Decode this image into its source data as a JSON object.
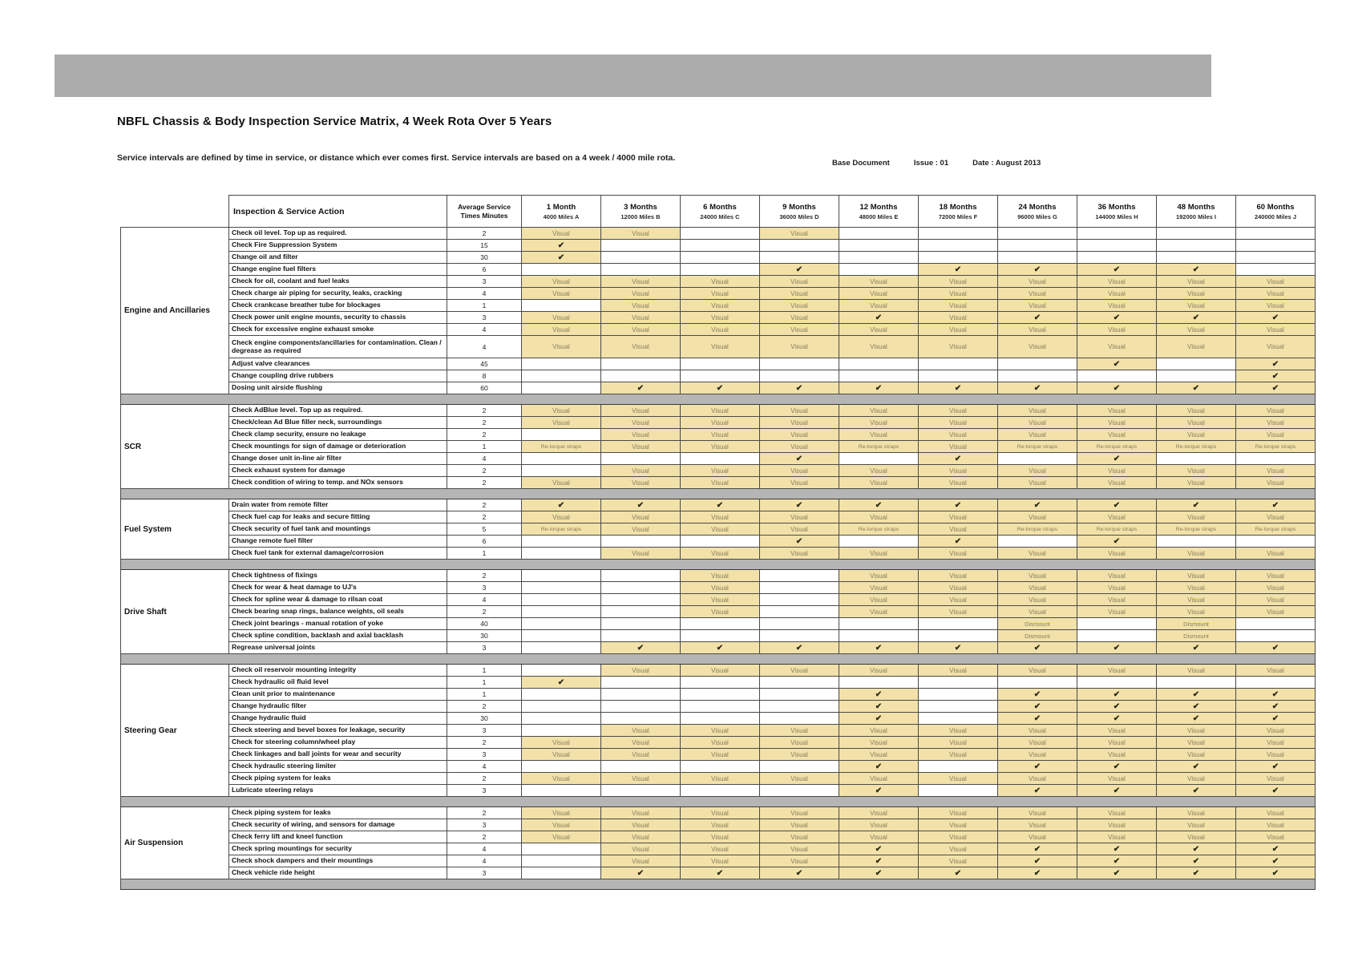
{
  "page": {
    "title": "NBFL Chassis & Body Inspection Service Matrix, 4 Week Rota Over 5 Years",
    "subtitle": "Service intervals are defined by time in service, or distance which ever comes first. Service intervals are based on a 4 week / 4000 mile rota.",
    "meta": {
      "base_document": "Base Document",
      "issue": "Issue : 01",
      "date": "Date : August 2013"
    }
  },
  "table": {
    "action_header": "Inspection & Service Action",
    "minutes_header_line1": "Average Service",
    "minutes_header_line2": "Times Minutes",
    "columns": [
      {
        "period": "1 Month",
        "miles": "4000 Miles A"
      },
      {
        "period": "3 Months",
        "miles": "12000 Miles B"
      },
      {
        "period": "6 Months",
        "miles": "24000 Miles C"
      },
      {
        "period": "9 Months",
        "miles": "36000 Miles D"
      },
      {
        "period": "12 Months",
        "miles": "48000 Miles E"
      },
      {
        "period": "18 Months",
        "miles": "72000 Miles F"
      },
      {
        "period": "24 Months",
        "miles": "96000 Miles G"
      },
      {
        "period": "36 Months",
        "miles": "144000 Miles H"
      },
      {
        "period": "48 Months",
        "miles": "192000 Miles I"
      },
      {
        "period": "60 Months",
        "miles": "240000 Miles J"
      }
    ],
    "cell_legend": {
      "V": "Visual",
      "C": "✔",
      "R": "Re-torque straps",
      "D": "Dismount",
      "": ""
    },
    "sections": [
      {
        "name": "Engine and Ancillaries",
        "rows": [
          {
            "action": "Check oil level. Top up as required.",
            "minutes": "2",
            "cells": [
              "V",
              "V",
              "",
              "V",
              "",
              "",
              "",
              "",
              "",
              ""
            ]
          },
          {
            "action": "Check Fire Suppression System",
            "minutes": "15",
            "cells": [
              "C",
              "",
              "",
              "",
              "",
              "",
              "",
              "",
              "",
              ""
            ]
          },
          {
            "action": "Change oil and filter",
            "minutes": "30",
            "cells": [
              "C",
              "",
              "",
              "",
              "",
              "",
              "",
              "",
              "",
              ""
            ]
          },
          {
            "action": "Change engine fuel filters",
            "minutes": "6",
            "cells": [
              "",
              "",
              "",
              "C",
              "",
              "C",
              "C",
              "C",
              "C",
              ""
            ]
          },
          {
            "action": "Check for oil, coolant and fuel leaks",
            "minutes": "3",
            "cells": [
              "V",
              "V",
              "V",
              "V",
              "V",
              "V",
              "V",
              "V",
              "V",
              "V"
            ]
          },
          {
            "action": "Check charge air piping for security, leaks, cracking",
            "minutes": "4",
            "cells": [
              "V",
              "V",
              "V",
              "V",
              "V",
              "V",
              "V",
              "V",
              "V",
              "V"
            ]
          },
          {
            "action": "Check crankcase breather tube for blockages",
            "minutes": "1",
            "cells": [
              "",
              "V",
              "V",
              "V",
              "V",
              "V",
              "V",
              "V",
              "V",
              "V"
            ]
          },
          {
            "action": "Check power unit engine mounts, security to chassis",
            "minutes": "3",
            "cells": [
              "V",
              "V",
              "V",
              "V",
              "C",
              "V",
              "C",
              "C",
              "C",
              "C"
            ]
          },
          {
            "action": "Check for excessive engine exhaust smoke",
            "minutes": "4",
            "cells": [
              "V",
              "V",
              "V",
              "V",
              "V",
              "V",
              "V",
              "V",
              "V",
              "V"
            ]
          },
          {
            "action": "Check engine components/ancillaries for contamination. Clean / degrease as required",
            "minutes": "4",
            "tall": true,
            "cells": [
              "V",
              "V",
              "V",
              "V",
              "V",
              "V",
              "V",
              "V",
              "V",
              "V"
            ]
          },
          {
            "action": "Adjust valve clearances",
            "minutes": "45",
            "cells": [
              "",
              "",
              "",
              "",
              "",
              "",
              "",
              "C",
              "",
              "C"
            ]
          },
          {
            "action": "Change coupling drive rubbers",
            "minutes": "8",
            "cells": [
              "",
              "",
              "",
              "",
              "",
              "",
              "",
              "",
              "",
              "C"
            ]
          },
          {
            "action": "Dosing unit airside flushing",
            "minutes": "60",
            "cells": [
              "",
              "C",
              "C",
              "C",
              "C",
              "C",
              "C",
              "C",
              "C",
              "C"
            ]
          }
        ]
      },
      {
        "name": "SCR",
        "rows": [
          {
            "action": "Check AdBlue level. Top up as required.",
            "minutes": "2",
            "cells": [
              "V",
              "V",
              "V",
              "V",
              "V",
              "V",
              "V",
              "V",
              "V",
              "V"
            ]
          },
          {
            "action": "Check/clean Ad Blue filler neck, surroundings",
            "minutes": "2",
            "cells": [
              "V",
              "V",
              "V",
              "V",
              "V",
              "V",
              "V",
              "V",
              "V",
              "V"
            ]
          },
          {
            "action": "Check clamp security, ensure no leakage",
            "minutes": "2",
            "cells": [
              "",
              "V",
              "V",
              "V",
              "V",
              "V",
              "V",
              "V",
              "V",
              "V"
            ]
          },
          {
            "action": "Check mountings for sign of damage or deterioration",
            "minutes": "1",
            "cells": [
              "R",
              "V",
              "V",
              "V",
              "R",
              "V",
              "R",
              "R",
              "R",
              "R"
            ]
          },
          {
            "action": "Change doser unit in-line air filter",
            "minutes": "4",
            "cells": [
              "",
              "",
              "",
              "C",
              "",
              "C",
              "",
              "C",
              "",
              ""
            ]
          },
          {
            "action": "Check exhaust system for damage",
            "minutes": "2",
            "cells": [
              "",
              "V",
              "V",
              "V",
              "V",
              "V",
              "V",
              "V",
              "V",
              "V"
            ]
          },
          {
            "action": "Check condition of wiring to temp. and NOx sensors",
            "minutes": "2",
            "cells": [
              "V",
              "V",
              "V",
              "V",
              "V",
              "V",
              "V",
              "V",
              "V",
              "V"
            ]
          }
        ]
      },
      {
        "name": "Fuel System",
        "rows": [
          {
            "action": "Drain water from remote filter",
            "minutes": "2",
            "cells": [
              "C",
              "C",
              "C",
              "C",
              "C",
              "C",
              "C",
              "C",
              "C",
              "C"
            ]
          },
          {
            "action": "Check fuel cap for leaks and secure fitting",
            "minutes": "2",
            "cells": [
              "V",
              "V",
              "V",
              "V",
              "V",
              "V",
              "V",
              "V",
              "V",
              "V"
            ]
          },
          {
            "action": "Check security of fuel tank and mountings",
            "minutes": "5",
            "cells": [
              "R",
              "V",
              "V",
              "V",
              "R",
              "V",
              "R",
              "R",
              "R",
              "R"
            ]
          },
          {
            "action": "Change remote fuel filter",
            "minutes": "6",
            "cells": [
              "",
              "",
              "",
              "C",
              "",
              "C",
              "",
              "C",
              "",
              ""
            ]
          },
          {
            "action": "Check fuel tank for external damage/corrosion",
            "minutes": "1",
            "cells": [
              "",
              "V",
              "V",
              "V",
              "V",
              "V",
              "V",
              "V",
              "V",
              "V"
            ]
          }
        ]
      },
      {
        "name": "Drive Shaft",
        "rows": [
          {
            "action": "Check tightness of fixings",
            "minutes": "2",
            "cells": [
              "",
              "",
              "V",
              "",
              "V",
              "V",
              "V",
              "V",
              "V",
              "V"
            ]
          },
          {
            "action": "Check for wear & heat damage to UJ's",
            "minutes": "3",
            "cells": [
              "",
              "",
              "V",
              "",
              "V",
              "V",
              "V",
              "V",
              "V",
              "V"
            ]
          },
          {
            "action": "Check for spline wear & damage to rilsan coat",
            "minutes": "4",
            "cells": [
              "",
              "",
              "V",
              "",
              "V",
              "V",
              "V",
              "V",
              "V",
              "V"
            ]
          },
          {
            "action": "Check bearing snap rings, balance weights, oil seals",
            "minutes": "2",
            "cells": [
              "",
              "",
              "V",
              "",
              "V",
              "V",
              "V",
              "V",
              "V",
              "V"
            ]
          },
          {
            "action": "Check joint bearings - manual rotation of yoke",
            "minutes": "40",
            "cells": [
              "",
              "",
              "",
              "",
              "",
              "",
              "D",
              "",
              "D",
              ""
            ]
          },
          {
            "action": "Check spline condition, backlash and axial backlash",
            "minutes": "30",
            "cells": [
              "",
              "",
              "",
              "",
              "",
              "",
              "D",
              "",
              "D",
              ""
            ]
          },
          {
            "action": "Regrease universal joints",
            "minutes": "3",
            "cells": [
              "",
              "C",
              "C",
              "C",
              "C",
              "C",
              "C",
              "C",
              "C",
              "C"
            ]
          }
        ]
      },
      {
        "name": "Steering Gear",
        "rows": [
          {
            "action": "Check oil reservoir mounting integrity",
            "minutes": "1",
            "cells": [
              "",
              "V",
              "V",
              "V",
              "V",
              "V",
              "V",
              "V",
              "V",
              "V"
            ]
          },
          {
            "action": "Check hydraulic oil fluid level",
            "minutes": "1",
            "cells": [
              "C",
              "",
              "",
              "",
              "",
              "",
              "",
              "",
              "",
              ""
            ]
          },
          {
            "action": "Clean unit prior to maintenance",
            "minutes": "1",
            "cells": [
              "",
              "",
              "",
              "",
              "C",
              "",
              "C",
              "C",
              "C",
              "C"
            ]
          },
          {
            "action": "Change hydraulic filter",
            "minutes": "2",
            "cells": [
              "",
              "",
              "",
              "",
              "C",
              "",
              "C",
              "C",
              "C",
              "C"
            ]
          },
          {
            "action": "Change hydraulic fluid",
            "minutes": "30",
            "cells": [
              "",
              "",
              "",
              "",
              "C",
              "",
              "C",
              "C",
              "C",
              "C"
            ]
          },
          {
            "action": "Check steering and bevel boxes for leakage, security",
            "minutes": "3",
            "cells": [
              "",
              "V",
              "V",
              "V",
              "V",
              "V",
              "V",
              "V",
              "V",
              "V"
            ]
          },
          {
            "action": "Check for steering column/wheel play",
            "minutes": "2",
            "cells": [
              "V",
              "V",
              "V",
              "V",
              "V",
              "V",
              "V",
              "V",
              "V",
              "V"
            ]
          },
          {
            "action": "Check linkages and ball joints for wear and security",
            "minutes": "3",
            "cells": [
              "V",
              "V",
              "V",
              "V",
              "V",
              "V",
              "V",
              "V",
              "V",
              "V"
            ]
          },
          {
            "action": "Check hydraulic steering limiter",
            "minutes": "4",
            "cells": [
              "",
              "",
              "",
              "",
              "C",
              "",
              "C",
              "C",
              "C",
              "C"
            ]
          },
          {
            "action": "Check piping system for leaks",
            "minutes": "2",
            "cells": [
              "V",
              "V",
              "V",
              "V",
              "V",
              "V",
              "V",
              "V",
              "V",
              "V"
            ]
          },
          {
            "action": "Lubricate steering relays",
            "minutes": "3",
            "cells": [
              "",
              "",
              "",
              "",
              "C",
              "",
              "C",
              "C",
              "C",
              "C"
            ]
          }
        ]
      },
      {
        "name": "Air Suspension",
        "rows": [
          {
            "action": "Check piping system for leaks",
            "minutes": "2",
            "cells": [
              "V",
              "V",
              "V",
              "V",
              "V",
              "V",
              "V",
              "V",
              "V",
              "V"
            ]
          },
          {
            "action": "Check security of wiring, and sensors for damage",
            "minutes": "3",
            "cells": [
              "V",
              "V",
              "V",
              "V",
              "V",
              "V",
              "V",
              "V",
              "V",
              "V"
            ]
          },
          {
            "action": "Check ferry lift and kneel function",
            "minutes": "2",
            "cells": [
              "V",
              "V",
              "V",
              "V",
              "V",
              "V",
              "V",
              "V",
              "V",
              "V"
            ]
          },
          {
            "action": "Check spring mountings for security",
            "minutes": "4",
            "cells": [
              "",
              "V",
              "V",
              "V",
              "C",
              "V",
              "C",
              "C",
              "C",
              "C"
            ]
          },
          {
            "action": "Check shock dampers and their mountings",
            "minutes": "4",
            "cells": [
              "",
              "V",
              "V",
              "V",
              "C",
              "V",
              "C",
              "C",
              "C",
              "C"
            ]
          },
          {
            "action": "Check vehicle ride height",
            "minutes": "3",
            "cells": [
              "",
              "C",
              "C",
              "C",
              "C",
              "C",
              "C",
              "C",
              "C",
              "C"
            ]
          }
        ]
      }
    ]
  }
}
